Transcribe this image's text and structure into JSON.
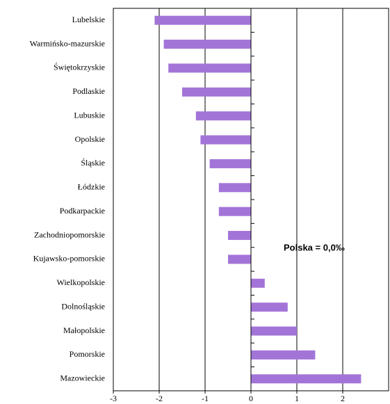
{
  "chart_data": {
    "type": "bar",
    "orientation": "horizontal",
    "categories": [
      "Lubelskie",
      "Warmińsko-mazurskie",
      "Świętokrzyskie",
      "Podlaskie",
      "Lubuskie",
      "Opolskie",
      "Śląskie",
      "Łódzkie",
      "Podkarpackie",
      "Zachodniopomorskie",
      "Kujawsko-pomorskie",
      "Wielkopolskie",
      "Dolnośląskie",
      "Małopolskie",
      "Pomorskie",
      "Mazowieckie"
    ],
    "values": [
      -2.1,
      -1.9,
      -1.8,
      -1.5,
      -1.2,
      -1.1,
      -0.9,
      -0.7,
      -0.7,
      -0.5,
      -0.5,
      0.3,
      0.8,
      1.0,
      1.4,
      2.4
    ],
    "color": "#a374d8",
    "xlim": [
      -3,
      3
    ],
    "xticks": [
      -3,
      -2,
      -1,
      0,
      1,
      2
    ],
    "grid": true,
    "annotation": "Polska = 0,0‰"
  }
}
